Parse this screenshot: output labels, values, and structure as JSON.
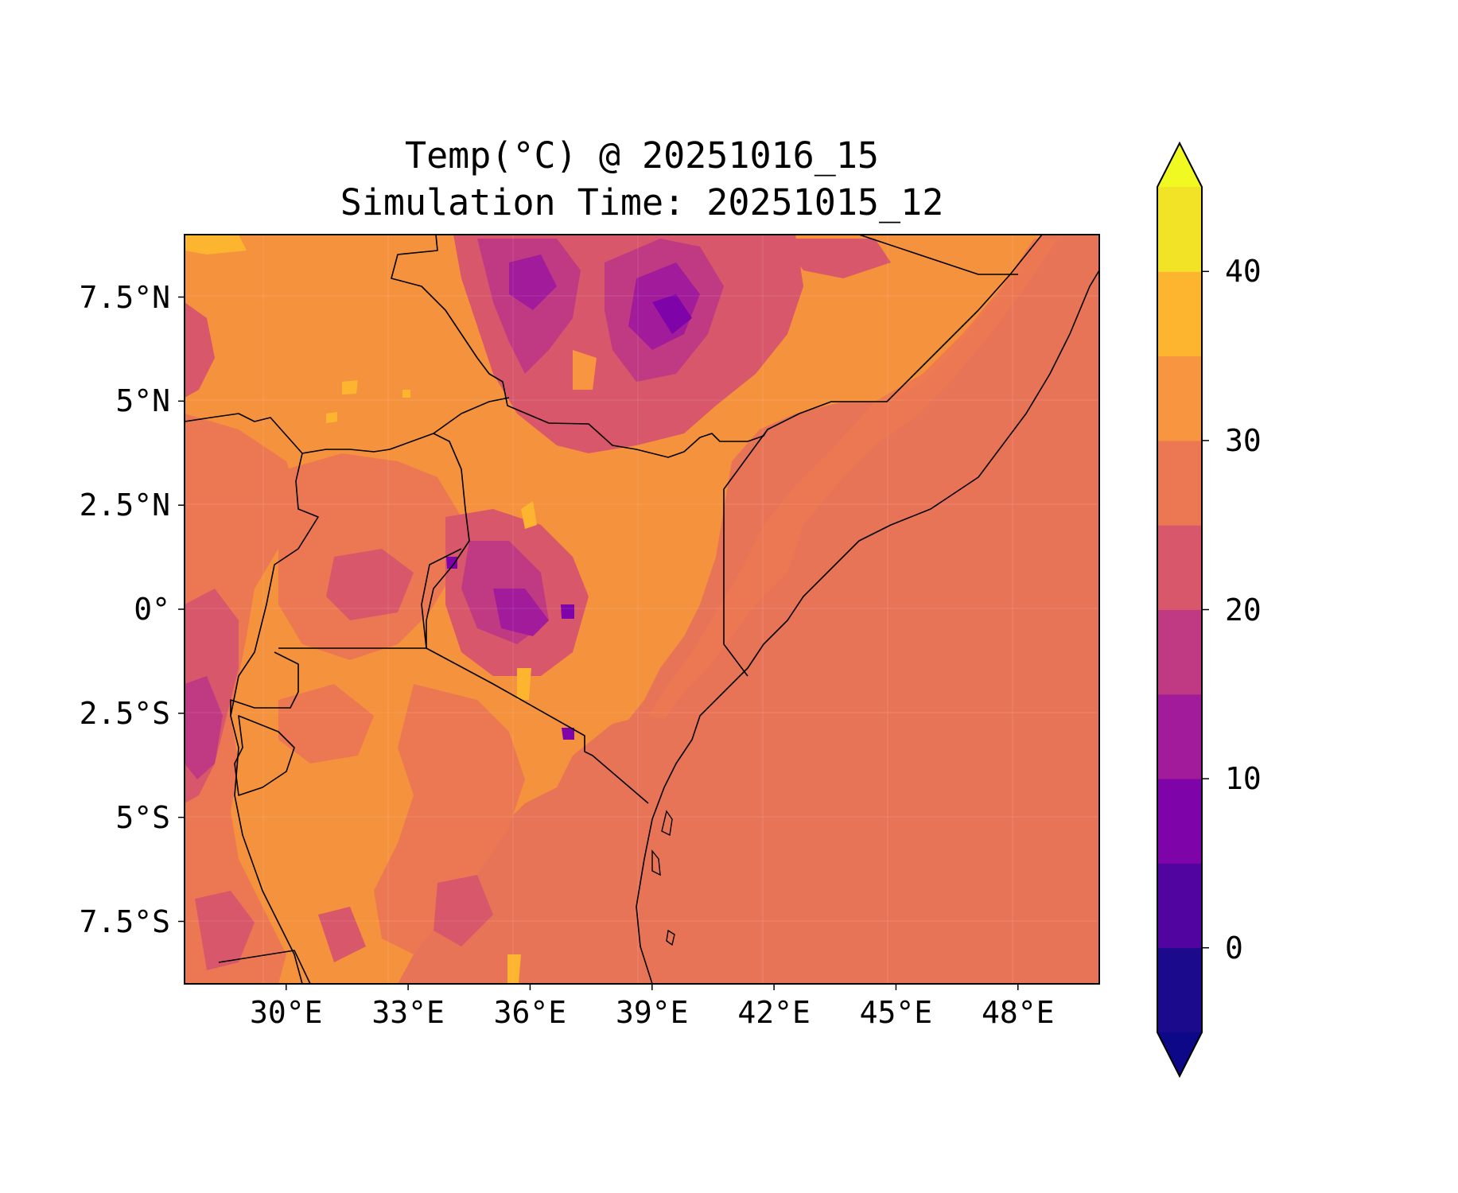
{
  "title": {
    "line1": "Temp(°C) @ 20251016_15",
    "line2": "Simulation Time: 20251015_12"
  },
  "map": {
    "lon_range": [
      27.5,
      50.0
    ],
    "lat_range": [
      -9.0,
      9.0
    ],
    "x_ticks": [
      {
        "value": 30,
        "label": "30°E"
      },
      {
        "value": 33,
        "label": "33°E"
      },
      {
        "value": 36,
        "label": "36°E"
      },
      {
        "value": 39,
        "label": "39°E"
      },
      {
        "value": 42,
        "label": "42°E"
      },
      {
        "value": 45,
        "label": "45°E"
      },
      {
        "value": 48,
        "label": "48°E"
      }
    ],
    "y_ticks": [
      {
        "value": 7.5,
        "label": "7.5°N"
      },
      {
        "value": 5,
        "label": "5°N"
      },
      {
        "value": 2.5,
        "label": "2.5°N"
      },
      {
        "value": 0,
        "label": "0°"
      },
      {
        "value": -2.5,
        "label": "2.5°S"
      },
      {
        "value": -5,
        "label": "5°S"
      },
      {
        "value": -7.5,
        "label": "7.5°S"
      }
    ],
    "gridlines": true,
    "ocean_color": "#e87458",
    "land_base_color": "#f5923e"
  },
  "colorbar": {
    "vmin": -5,
    "vmax": 45,
    "extend": "both",
    "bins": [
      {
        "from": -5,
        "to": 0,
        "color": "#1c0a8c"
      },
      {
        "from": 0,
        "to": 5,
        "color": "#5204a1"
      },
      {
        "from": 5,
        "to": 10,
        "color": "#7e03a8"
      },
      {
        "from": 10,
        "to": 15,
        "color": "#a11b9b"
      },
      {
        "from": 15,
        "to": 20,
        "color": "#c03a83"
      },
      {
        "from": 20,
        "to": 25,
        "color": "#d8576b"
      },
      {
        "from": 25,
        "to": 30,
        "color": "#ec7853"
      },
      {
        "from": 30,
        "to": 35,
        "color": "#f89540"
      },
      {
        "from": 35,
        "to": 40,
        "color": "#fdb42f"
      },
      {
        "from": 40,
        "to": 45,
        "color": "#f3e327"
      }
    ],
    "under_color": "#0d0887",
    "over_color": "#f0f921",
    "ticks": [
      {
        "value": 0,
        "label": "0"
      },
      {
        "value": 10,
        "label": "10"
      },
      {
        "value": 20,
        "label": "20"
      },
      {
        "value": 30,
        "label": "30"
      },
      {
        "value": 40,
        "label": "40"
      }
    ]
  }
}
